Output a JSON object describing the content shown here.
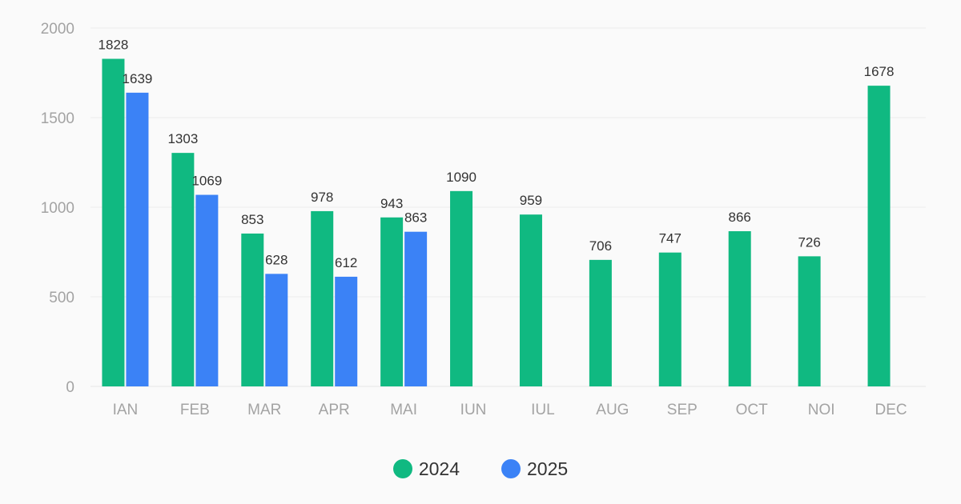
{
  "chart_data": {
    "type": "bar",
    "categories": [
      "IAN",
      "FEB",
      "MAR",
      "APR",
      "MAI",
      "IUN",
      "IUL",
      "AUG",
      "SEP",
      "OCT",
      "NOI",
      "DEC"
    ],
    "series": [
      {
        "name": "2024",
        "color": "#10b981",
        "values": [
          1828,
          1303,
          853,
          978,
          943,
          1090,
          959,
          706,
          747,
          866,
          726,
          1678
        ]
      },
      {
        "name": "2025",
        "color": "#3b82f6",
        "values": [
          1639,
          1069,
          628,
          612,
          863,
          null,
          null,
          null,
          null,
          null,
          null,
          null
        ]
      }
    ],
    "y_ticks": [
      "0",
      "500",
      "1000",
      "1500",
      "2000"
    ],
    "ylim": [
      0,
      2000
    ],
    "grid": true,
    "legend_position": "bottom-center",
    "title": "",
    "xlabel": "",
    "ylabel": ""
  }
}
